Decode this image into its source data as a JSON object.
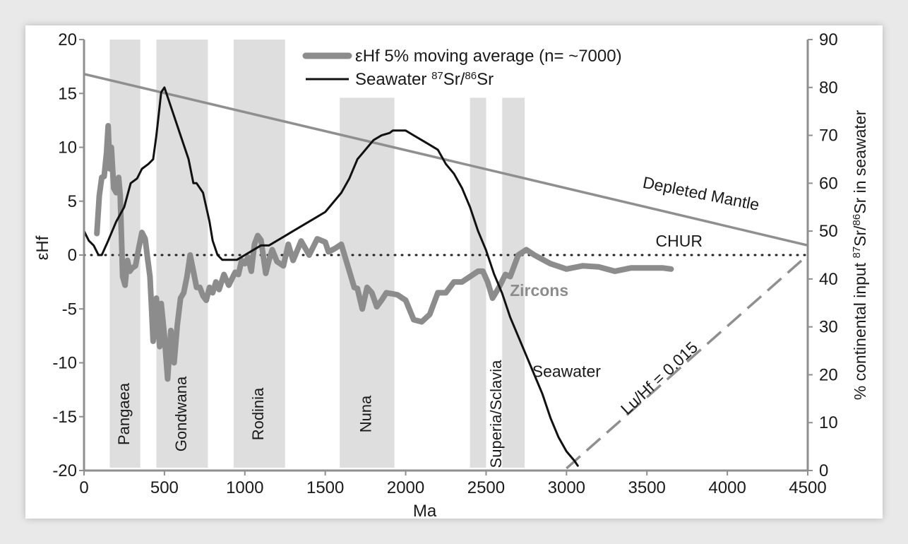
{
  "chart_data": {
    "type": "line",
    "title": "",
    "xlabel": "Ma",
    "ylabel": "εHf",
    "ylabel_right": "% continental input 87Sr/86Sr in seawater",
    "xlim": [
      0,
      4500
    ],
    "ylim": [
      -20,
      20
    ],
    "ylim_right": [
      0,
      90
    ],
    "x_ticks": [
      "0",
      "500",
      "1000",
      "1500",
      "2000",
      "2500",
      "3000",
      "3500",
      "4000",
      "4500"
    ],
    "y_ticks": [
      "20",
      "15",
      "10",
      "5",
      "0",
      "-5",
      "-10",
      "-15",
      "-20"
    ],
    "y_ticks_right": [
      "90",
      "80",
      "70",
      "60",
      "50",
      "40",
      "30",
      "20",
      "10",
      "0"
    ],
    "legend": {
      "placement": "top-center",
      "entries": [
        {
          "label": "εHf 5% moving average (n= ~7000)",
          "color": "#8c8c8c"
        },
        {
          "label": "Seawater 87Sr/86Sr",
          "color": "#111111"
        }
      ]
    },
    "supercontinents": [
      {
        "name": "Pangaea",
        "x0": 160,
        "x1": 350
      },
      {
        "name": "Gondwana",
        "x0": 450,
        "x1": 770
      },
      {
        "name": "Rodinia",
        "x0": 930,
        "x1": 1250
      },
      {
        "name": "Nuna",
        "x0": 1590,
        "x1": 1930
      },
      {
        "name": "Superia/Sclavia",
        "x0": 2400,
        "x1": 2500,
        "x0b": 2600,
        "x1b": 2740
      }
    ],
    "reference_lines": [
      {
        "name": "Depleted Mantle",
        "x": [
          0,
          4500
        ],
        "y": [
          16.8,
          0.9
        ]
      },
      {
        "name": "CHUR",
        "x": [
          0,
          4500
        ],
        "y": [
          0,
          0
        ]
      },
      {
        "name": "Lu/Hf = 0.015",
        "x": [
          3000,
          4500
        ],
        "y": [
          -19.8,
          0
        ]
      }
    ],
    "annotations": [
      "Depleted Mantle",
      "CHUR",
      "Zircons",
      "Seawater",
      "Lu/Hf = 0.015"
    ],
    "series": [
      {
        "name": "εHf 5% moving average (n= ~7000)",
        "axis": "left",
        "color": "#8c8c8c",
        "x": [
          80,
          95,
          110,
          125,
          140,
          150,
          160,
          170,
          185,
          200,
          215,
          225,
          240,
          255,
          270,
          285,
          300,
          320,
          340,
          360,
          380,
          395,
          410,
          420,
          430,
          440,
          450,
          460,
          470,
          480,
          500,
          520,
          540,
          560,
          580,
          600,
          620,
          640,
          660,
          680,
          700,
          720,
          740,
          760,
          780,
          800,
          820,
          840,
          870,
          900,
          940,
          960,
          980,
          1000,
          1020,
          1040,
          1060,
          1080,
          1100,
          1130,
          1150,
          1170,
          1200,
          1240,
          1270,
          1300,
          1350,
          1400,
          1450,
          1500,
          1520,
          1560,
          1600,
          1650,
          1680,
          1700,
          1730,
          1760,
          1790,
          1820,
          1850,
          1880,
          1920,
          1950,
          1980,
          2000,
          2050,
          2100,
          2150,
          2200,
          2250,
          2300,
          2350,
          2400,
          2450,
          2480,
          2510,
          2540,
          2580,
          2620,
          2650,
          2700,
          2750,
          2800,
          2900,
          3000,
          3100,
          3200,
          3300,
          3400,
          3500,
          3600,
          3650
        ],
        "y": [
          2.0,
          5.5,
          7.2,
          7.3,
          9.5,
          12.0,
          8.0,
          10.0,
          6.2,
          5.8,
          7.2,
          5.5,
          -2.0,
          -2.8,
          -0.5,
          -1.5,
          -1.2,
          -1.0,
          0.6,
          2.1,
          1.5,
          -0.3,
          -2.0,
          -5.0,
          -8.0,
          -6.0,
          -4.0,
          -6.5,
          -8.5,
          -4.5,
          -7.5,
          -11.5,
          -7.0,
          -10.0,
          -6.5,
          -4.0,
          -3.5,
          -2.0,
          0.0,
          -1.5,
          -3.0,
          -3.0,
          -3.8,
          -4.2,
          -3.0,
          -3.5,
          -2.5,
          -3.2,
          -1.8,
          -2.8,
          -1.6,
          -1.8,
          -0.5,
          -0.8,
          -0.2,
          -1.5,
          1.0,
          1.8,
          1.4,
          -1.7,
          -0.5,
          0.5,
          -0.6,
          -1.0,
          1.0,
          -0.5,
          1.3,
          0.0,
          1.5,
          1.2,
          0.3,
          0.6,
          1.0,
          -1.5,
          -3.0,
          -3.1,
          -5.0,
          -3.0,
          -3.5,
          -4.8,
          -4.2,
          -3.5,
          -3.6,
          -3.7,
          -4.0,
          -4.2,
          -6.0,
          -6.2,
          -5.5,
          -3.5,
          -3.5,
          -2.5,
          -2.5,
          -2.0,
          -1.5,
          -1.5,
          -2.5,
          -4.0,
          -3.0,
          -1.8,
          -2.0,
          0.0,
          0.5,
          0.0,
          -0.8,
          -1.3,
          -1.0,
          -1.1,
          -1.5,
          -1.2,
          -1.2,
          -1.2,
          -1.3
        ]
      },
      {
        "name": "Seawater 87Sr/86Sr",
        "axis": "right",
        "color": "#111111",
        "x": [
          0,
          30,
          60,
          90,
          110,
          150,
          200,
          250,
          290,
          330,
          360,
          400,
          430,
          450,
          480,
          500,
          550,
          600,
          650,
          680,
          700,
          740,
          780,
          800,
          830,
          860,
          900,
          950,
          1000,
          1050,
          1100,
          1150,
          1200,
          1250,
          1300,
          1350,
          1400,
          1450,
          1500,
          1550,
          1600,
          1650,
          1700,
          1750,
          1800,
          1850,
          1900,
          1920,
          1950,
          2000,
          2050,
          2100,
          2150,
          2200,
          2250,
          2300,
          2350,
          2400,
          2450,
          2500,
          2550,
          2600,
          2650,
          2700,
          2750,
          2800,
          2850,
          2900,
          2950,
          3000,
          3050,
          3070
        ],
        "y": [
          50,
          48,
          47,
          45,
          45,
          48,
          52,
          55,
          60,
          61,
          63,
          64,
          65,
          70,
          79,
          80,
          75,
          70,
          65,
          60,
          60,
          58,
          52,
          48,
          45,
          44,
          44,
          44,
          45,
          46,
          47,
          47,
          48,
          49,
          50,
          51,
          52,
          53,
          54,
          56,
          58,
          61,
          65,
          67,
          69,
          70,
          70.5,
          71,
          71,
          71,
          70,
          69,
          68,
          67,
          64,
          62,
          59,
          55,
          50,
          46,
          41,
          37,
          32,
          28,
          24,
          20,
          16,
          11,
          7,
          4,
          2,
          1
        ]
      }
    ]
  }
}
